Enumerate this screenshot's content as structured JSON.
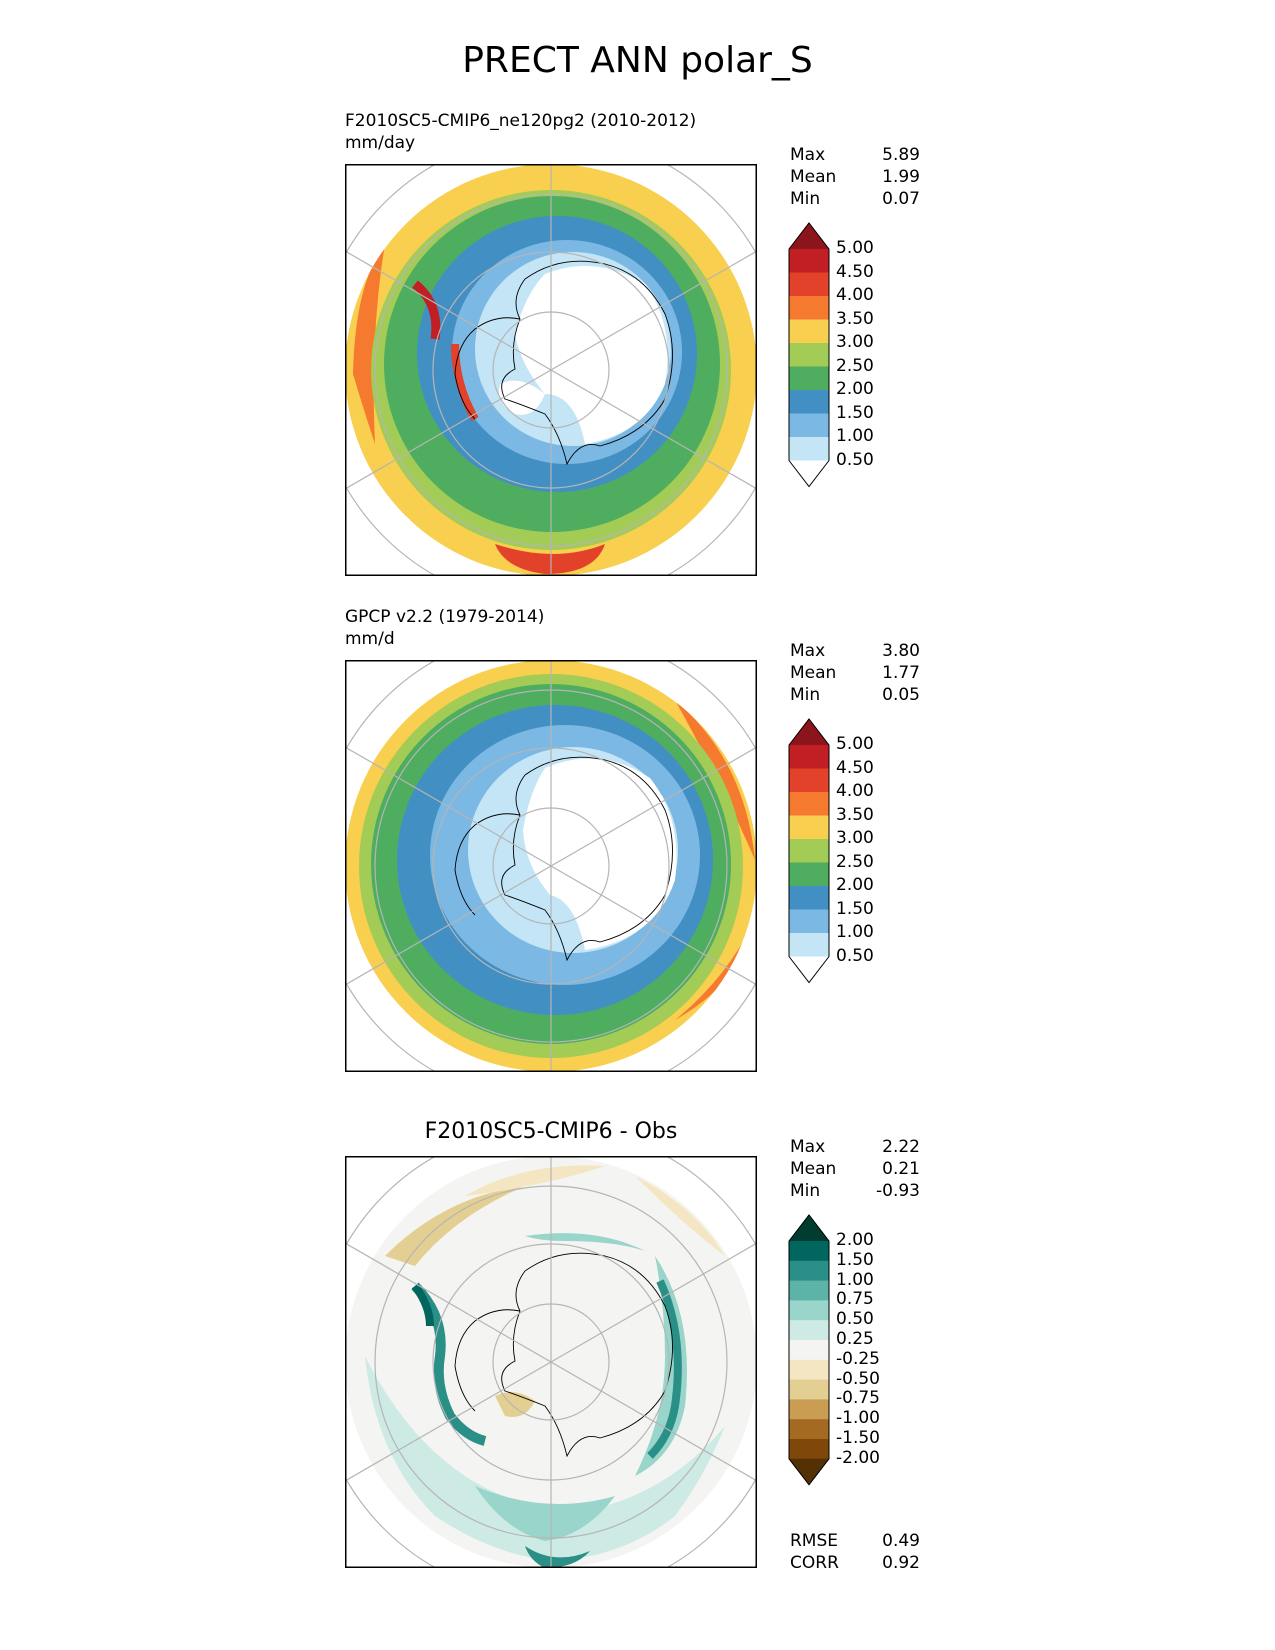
{
  "figure": {
    "title": "PRECT ANN polar_S"
  },
  "panels": [
    {
      "id": "test",
      "subtitle_line1": "F2010SC5-CMIP6_ne120pg2 (2010-2012)",
      "subtitle_line2": "mm/day",
      "stats": [
        {
          "label": "Max",
          "value": "5.89"
        },
        {
          "label": "Mean",
          "value": "1.99"
        },
        {
          "label": "Min",
          "value": "0.07"
        }
      ]
    },
    {
      "id": "ref",
      "subtitle_line1": "GPCP v2.2 (1979-2014)",
      "subtitle_line2": "mm/d",
      "stats": [
        {
          "label": "Max",
          "value": "3.80"
        },
        {
          "label": "Mean",
          "value": "1.77"
        },
        {
          "label": "Min",
          "value": "0.05"
        }
      ]
    },
    {
      "id": "diff",
      "subtitle_center": "F2010SC5-CMIP6 - Obs",
      "stats": [
        {
          "label": "Max",
          "value": "2.22"
        },
        {
          "label": "Mean",
          "value": "0.21"
        },
        {
          "label": "Min",
          "value": "-0.93"
        }
      ],
      "metrics": [
        {
          "label": "RMSE",
          "value": "0.49"
        },
        {
          "label": "CORR",
          "value": "0.92"
        }
      ]
    }
  ],
  "colorbars": {
    "precip": {
      "ticks": [
        "5.00",
        "4.50",
        "4.00",
        "3.50",
        "3.00",
        "2.50",
        "2.00",
        "1.50",
        "1.00",
        "0.50"
      ],
      "colors_top_to_bottom": [
        "#8c151b",
        "#c21f24",
        "#e2412a",
        "#f5792e",
        "#f8cf4e",
        "#a2cc56",
        "#4fad5f",
        "#428fc3",
        "#7bb8e3",
        "#c4e5f6",
        "#ffffff"
      ]
    },
    "diff": {
      "ticks": [
        "2.00",
        "1.50",
        "1.00",
        "0.75",
        "0.50",
        "0.25",
        "-0.25",
        "-0.50",
        "-0.75",
        "-1.00",
        "-1.50",
        "-2.00"
      ],
      "colors_top_to_bottom": [
        "#003c30",
        "#01665e",
        "#2a8f86",
        "#5eb3a9",
        "#99d5ca",
        "#cdeae5",
        "#f4f4f2",
        "#f5e6c3",
        "#e4cf93",
        "#c99d52",
        "#a56a21",
        "#7f470a",
        "#543005"
      ]
    }
  },
  "chart_data": [
    {
      "type": "heatmap",
      "projection": "south-polar-stereographic",
      "title": "F2010SC5-CMIP6_ne120pg2 (2010-2012)",
      "units": "mm/day",
      "levels": [
        0.5,
        1.0,
        1.5,
        2.0,
        2.5,
        3.0,
        3.5,
        4.0,
        4.5,
        5.0
      ],
      "max": 5.89,
      "mean": 1.99,
      "min": 0.07,
      "description_of_field": [
        {
          "latitude": -85,
          "value": 0.2
        },
        {
          "latitude": -75,
          "value": 0.8
        },
        {
          "latitude": -65,
          "value": 1.6
        },
        {
          "latitude": -58,
          "value": 2.2
        },
        {
          "latitude": -52,
          "value": 2.8
        },
        {
          "latitude": -45,
          "value": 3.4
        }
      ]
    },
    {
      "type": "heatmap",
      "projection": "south-polar-stereographic",
      "title": "GPCP v2.2 (1979-2014)",
      "units": "mm/d",
      "levels": [
        0.5,
        1.0,
        1.5,
        2.0,
        2.5,
        3.0,
        3.5,
        4.0,
        4.5,
        5.0
      ],
      "max": 3.8,
      "mean": 1.77,
      "min": 0.05,
      "description_of_field": [
        {
          "latitude": -85,
          "value": 0.2
        },
        {
          "latitude": -75,
          "value": 0.7
        },
        {
          "latitude": -65,
          "value": 1.4
        },
        {
          "latitude": -58,
          "value": 1.8
        },
        {
          "latitude": -52,
          "value": 2.3
        },
        {
          "latitude": -45,
          "value": 3.1
        }
      ]
    },
    {
      "type": "heatmap",
      "projection": "south-polar-stereographic",
      "title": "F2010SC5-CMIP6 - Obs",
      "levels": [
        -2.0,
        -1.5,
        -1.0,
        -0.75,
        -0.5,
        -0.25,
        0.25,
        0.5,
        0.75,
        1.0,
        1.5,
        2.0
      ],
      "max": 2.22,
      "mean": 0.21,
      "min": -0.93,
      "rmse": 0.49,
      "corr": 0.92
    }
  ]
}
